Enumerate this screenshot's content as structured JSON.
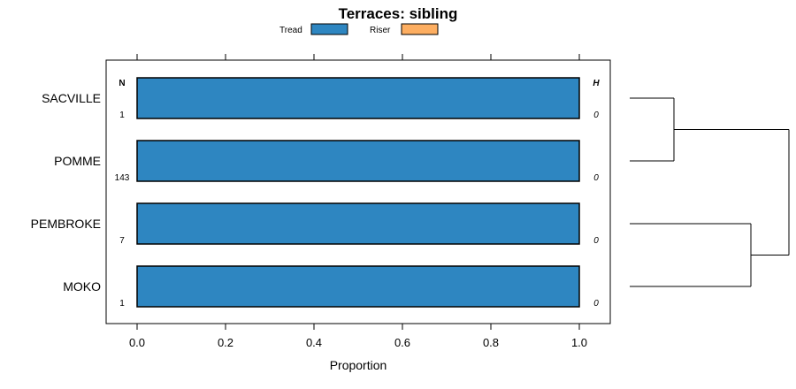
{
  "chart_data": {
    "type": "bar",
    "orientation": "horizontal",
    "stacked": true,
    "title": "Terraces: sibling",
    "xlabel": "Proportion",
    "ylabel": "",
    "xlim": [
      -0.07,
      1.07
    ],
    "x_ticks": [
      0.0,
      0.2,
      0.4,
      0.6,
      0.8,
      1.0
    ],
    "x_tick_labels": [
      "0.0",
      "0.2",
      "0.4",
      "0.6",
      "0.8",
      "1.0"
    ],
    "categories": [
      "SACVILLE",
      "POMME",
      "PEMBROKE",
      "MOKO"
    ],
    "series": [
      {
        "name": "Tread",
        "color": "#2e86c1",
        "values": [
          1.0,
          1.0,
          1.0,
          1.0
        ]
      },
      {
        "name": "Riser",
        "color": "#fdae61",
        "values": [
          0.0,
          0.0,
          0.0,
          0.0
        ]
      }
    ],
    "legend": {
      "placement": "top",
      "entries": [
        "Tread",
        "Riser"
      ]
    },
    "n_header": "N",
    "n_values": [
      "1",
      "143",
      "7",
      "1"
    ],
    "h_header": "H",
    "h_values": [
      "0",
      "0",
      "0",
      "0"
    ],
    "dendrogram": {
      "description": "hierarchical clustering of categories",
      "merges": [
        [
          "SACVILLE",
          "POMME"
        ],
        [
          "PEMBROKE",
          "MOKO"
        ],
        [
          "SACVILLE+POMME",
          "PEMBROKE+MOKO"
        ]
      ],
      "heights": [
        1,
        2,
        3
      ]
    }
  }
}
